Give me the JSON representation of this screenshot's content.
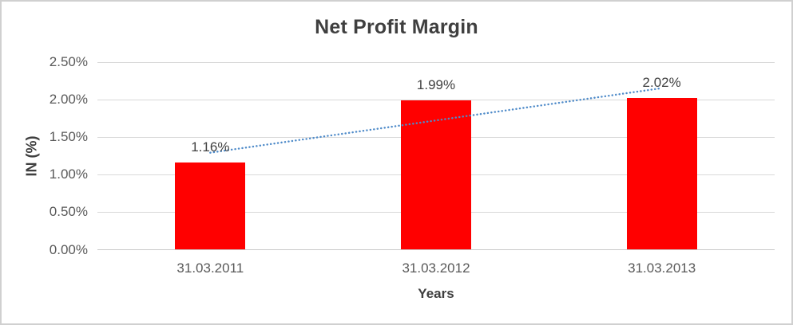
{
  "chart_data": {
    "type": "bar",
    "title": "Net Profit Margin",
    "xlabel": "Years",
    "ylabel": "IN (%)",
    "categories": [
      "31.03.2011",
      "31.03.2012",
      "31.03.2013"
    ],
    "values": [
      1.16,
      1.99,
      2.02
    ],
    "data_labels": [
      "1.16%",
      "1.99%",
      "2.02%"
    ],
    "ytick_labels": [
      "0.00%",
      "0.50%",
      "1.00%",
      "1.50%",
      "2.00%",
      "2.50%"
    ],
    "ytick_step": 0.5,
    "ylim": [
      0,
      2.5
    ],
    "grid": true,
    "legend_position": "none",
    "bar_color": "#ff0000",
    "trendline": {
      "type": "linear",
      "line_style": "dotted",
      "color": "#4f8bc9"
    }
  }
}
